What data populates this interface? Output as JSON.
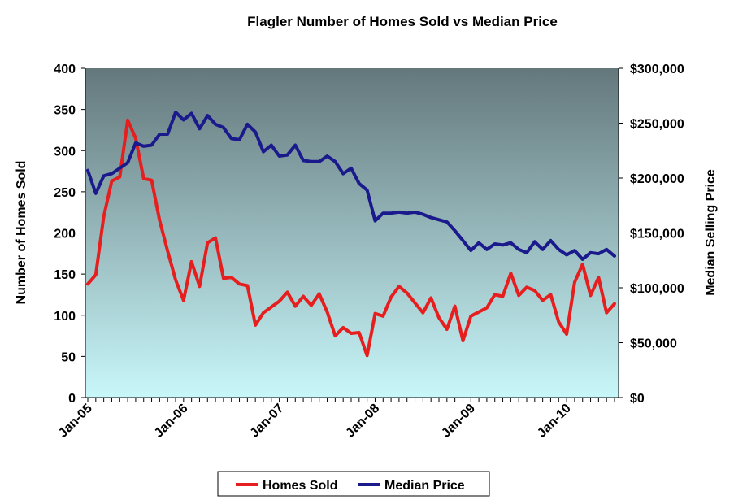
{
  "chart_data": {
    "type": "line",
    "title": "Flagler Number of Homes Sold vs Median Price",
    "xlabel": "",
    "ylabel": "Number of Homes Sold",
    "y2label": "Median Selling Price",
    "ylim": [
      0,
      400
    ],
    "y2lim": [
      0,
      300000
    ],
    "yticks": [
      "0",
      "50",
      "100",
      "150",
      "200",
      "250",
      "300",
      "350",
      "400"
    ],
    "y2ticks": [
      "$0",
      "$50,000",
      "$100,000",
      "$150,000",
      "$200,000",
      "$250,000",
      "$300,000"
    ],
    "xticks": [
      "Jan-05",
      "Jan-06",
      "Jan-07",
      "Jan-08",
      "Jan-09",
      "Jan-10"
    ],
    "plot_background": {
      "top": "#64787c",
      "bottom": "#c8f7fa"
    },
    "grid": false,
    "legend_position": "bottom",
    "months": 67,
    "series": [
      {
        "name": "Homes Sold",
        "axis": "left",
        "color": "#e61e1e",
        "values": [
          138,
          149,
          220,
          263,
          268,
          337,
          315,
          266,
          264,
          215,
          178,
          143,
          118,
          165,
          135,
          188,
          194,
          145,
          146,
          138,
          136,
          88,
          103,
          110,
          117,
          128,
          111,
          123,
          112,
          126,
          104,
          75,
          85,
          78,
          79,
          51,
          102,
          99,
          122,
          135,
          127,
          115,
          103,
          121,
          97,
          83,
          111,
          69,
          99,
          104,
          109,
          125,
          123,
          151,
          124,
          134,
          130,
          118,
          125,
          92,
          77,
          140,
          162,
          124,
          146,
          103,
          114
        ]
      },
      {
        "name": "Median Price",
        "axis": "right",
        "color": "#1a1a8c",
        "values": [
          207000,
          186000,
          202000,
          204000,
          209000,
          214000,
          232000,
          229000,
          230000,
          240000,
          240000,
          260000,
          253000,
          259000,
          245000,
          257000,
          249000,
          246000,
          236000,
          235000,
          249000,
          242000,
          224000,
          230000,
          220000,
          221000,
          230000,
          216000,
          215000,
          215000,
          220000,
          215000,
          204000,
          209000,
          195000,
          189000,
          161000,
          168000,
          168000,
          169000,
          168000,
          169000,
          167000,
          164000,
          162000,
          160000,
          152000,
          143000,
          134000,
          141000,
          135000,
          140000,
          139000,
          141000,
          135000,
          132000,
          142000,
          135000,
          143000,
          135000,
          130000,
          134000,
          126000,
          132000,
          131000,
          135000,
          129000
        ]
      }
    ]
  }
}
